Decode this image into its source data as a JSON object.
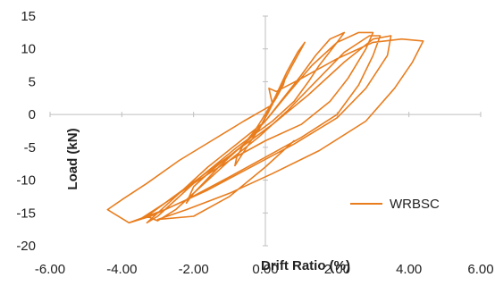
{
  "chart_data": {
    "type": "line",
    "title": "",
    "xlabel": "Drift Ratio (%)",
    "ylabel": "Load (kN)",
    "xlim": [
      -6,
      6
    ],
    "ylim": [
      -20,
      15
    ],
    "x_ticks": [
      "-6.00",
      "-4.00",
      "-2.00",
      "0.00",
      "2.00",
      "4.00",
      "6.00"
    ],
    "y_ticks": [
      "15",
      "10",
      "5",
      "0",
      "-5",
      "-10",
      "-15",
      "-20"
    ],
    "grid": false,
    "legend_position": "lower-right",
    "series": [
      {
        "name": "WRBSC",
        "color": "#E87D1E",
        "points": [
          [
            0,
            0
          ],
          [
            0.15,
            1.2
          ],
          [
            0.3,
            2.5
          ],
          [
            0.45,
            4.0
          ],
          [
            0.55,
            5.5
          ],
          [
            0.5,
            4.5
          ],
          [
            0.3,
            2.8
          ],
          [
            0.1,
            1.0
          ],
          [
            -0.1,
            -0.8
          ],
          [
            -0.3,
            -2.5
          ],
          [
            -0.6,
            -4.5
          ],
          [
            -0.8,
            -6.5
          ],
          [
            -0.85,
            -7.8
          ],
          [
            -0.7,
            -6.5
          ],
          [
            -0.4,
            -4.0
          ],
          [
            -0.15,
            -2.0
          ],
          [
            0.05,
            0.2
          ],
          [
            0.3,
            3.0
          ],
          [
            0.6,
            6.5
          ],
          [
            0.9,
            9.5
          ],
          [
            1.1,
            11.0
          ],
          [
            1.0,
            10.0
          ],
          [
            0.7,
            7.0
          ],
          [
            0.4,
            3.8
          ],
          [
            0.1,
            0.5
          ],
          [
            -0.2,
            -2.5
          ],
          [
            -0.7,
            -5.0
          ],
          [
            -1.5,
            -8.5
          ],
          [
            -2.0,
            -11.0
          ],
          [
            -2.2,
            -13.5
          ],
          [
            -2.0,
            -12.0
          ],
          [
            -1.3,
            -8.0
          ],
          [
            -0.6,
            -4.5
          ],
          [
            0.0,
            -1.0
          ],
          [
            0.5,
            2.5
          ],
          [
            1.0,
            6.0
          ],
          [
            1.4,
            9.0
          ],
          [
            1.8,
            11.5
          ],
          [
            2.2,
            12.5
          ],
          [
            2.0,
            11.0
          ],
          [
            1.5,
            7.5
          ],
          [
            1.2,
            5.0
          ],
          [
            0.8,
            2.0
          ],
          [
            0.2,
            -1.0
          ],
          [
            -0.8,
            -5.0
          ],
          [
            -1.8,
            -9.5
          ],
          [
            -2.5,
            -13.0
          ],
          [
            -3.0,
            -15.5
          ],
          [
            -3.3,
            -16.5
          ],
          [
            -3.0,
            -15.0
          ],
          [
            -2.4,
            -12.0
          ],
          [
            -1.6,
            -8.0
          ],
          [
            -0.8,
            -4.5
          ],
          [
            0.0,
            -1.0
          ],
          [
            0.6,
            3.0
          ],
          [
            1.3,
            7.5
          ],
          [
            2.0,
            11.0
          ],
          [
            2.6,
            12.5
          ],
          [
            3.0,
            12.5
          ],
          [
            2.8,
            10.0
          ],
          [
            2.3,
            5.5
          ],
          [
            1.8,
            2.0
          ],
          [
            1.0,
            -1.5
          ],
          [
            0.0,
            -4.0
          ],
          [
            -1.0,
            -7.0
          ],
          [
            -2.0,
            -10.5
          ],
          [
            -2.8,
            -13.5
          ],
          [
            -3.3,
            -15.5
          ],
          [
            -3.0,
            -16.2
          ],
          [
            -2.5,
            -14.5
          ],
          [
            -1.8,
            -11.0
          ],
          [
            -1.0,
            -7.0
          ],
          [
            -0.2,
            -3.5
          ],
          [
            0.6,
            0.5
          ],
          [
            1.4,
            5.0
          ],
          [
            2.2,
            9.5
          ],
          [
            2.9,
            12.0
          ],
          [
            3.2,
            12.0
          ],
          [
            3.0,
            9.0
          ],
          [
            2.6,
            4.5
          ],
          [
            2.0,
            0.0
          ],
          [
            1.0,
            -3.5
          ],
          [
            0.0,
            -6.5
          ],
          [
            -1.0,
            -9.5
          ],
          [
            -2.2,
            -13.0
          ],
          [
            -3.2,
            -15.5
          ],
          [
            -3.8,
            -16.5
          ],
          [
            -3.5,
            -16.0
          ],
          [
            -2.8,
            -13.5
          ],
          [
            -1.8,
            -9.5
          ],
          [
            -0.8,
            -5.5
          ],
          [
            0.2,
            -1.5
          ],
          [
            1.2,
            3.0
          ],
          [
            2.2,
            8.0
          ],
          [
            3.0,
            11.5
          ],
          [
            3.5,
            12.0
          ],
          [
            3.4,
            9.0
          ],
          [
            2.8,
            4.0
          ],
          [
            2.0,
            -0.5
          ],
          [
            0.8,
            -4.5
          ],
          [
            -0.4,
            -8.0
          ],
          [
            -1.6,
            -11.5
          ],
          [
            -2.8,
            -14.5
          ],
          [
            -3.8,
            -16.5
          ],
          [
            -4.4,
            -14.5
          ],
          [
            -4.0,
            -13.0
          ],
          [
            -3.3,
            -10.5
          ],
          [
            -2.4,
            -7.0
          ],
          [
            -1.5,
            -4.0
          ],
          [
            -0.6,
            -1.0
          ],
          [
            0.2,
            1.5
          ],
          [
            0.1,
            4.0
          ],
          [
            0.3,
            3.5
          ],
          [
            1.0,
            5.5
          ],
          [
            2.0,
            8.5
          ],
          [
            3.0,
            11.0
          ],
          [
            3.8,
            11.5
          ],
          [
            4.4,
            11.2
          ],
          [
            4.1,
            8.0
          ],
          [
            3.6,
            4.0
          ],
          [
            2.8,
            -1.0
          ],
          [
            1.5,
            -5.5
          ],
          [
            0.2,
            -9.0
          ],
          [
            -1.0,
            -12.0
          ],
          [
            -2.2,
            -14.5
          ],
          [
            -3.0,
            -16.0
          ],
          [
            -2.0,
            -15.5
          ],
          [
            -1.0,
            -12.5
          ],
          [
            0.0,
            -8.0
          ],
          [
            0.8,
            -4.0
          ]
        ]
      }
    ]
  }
}
